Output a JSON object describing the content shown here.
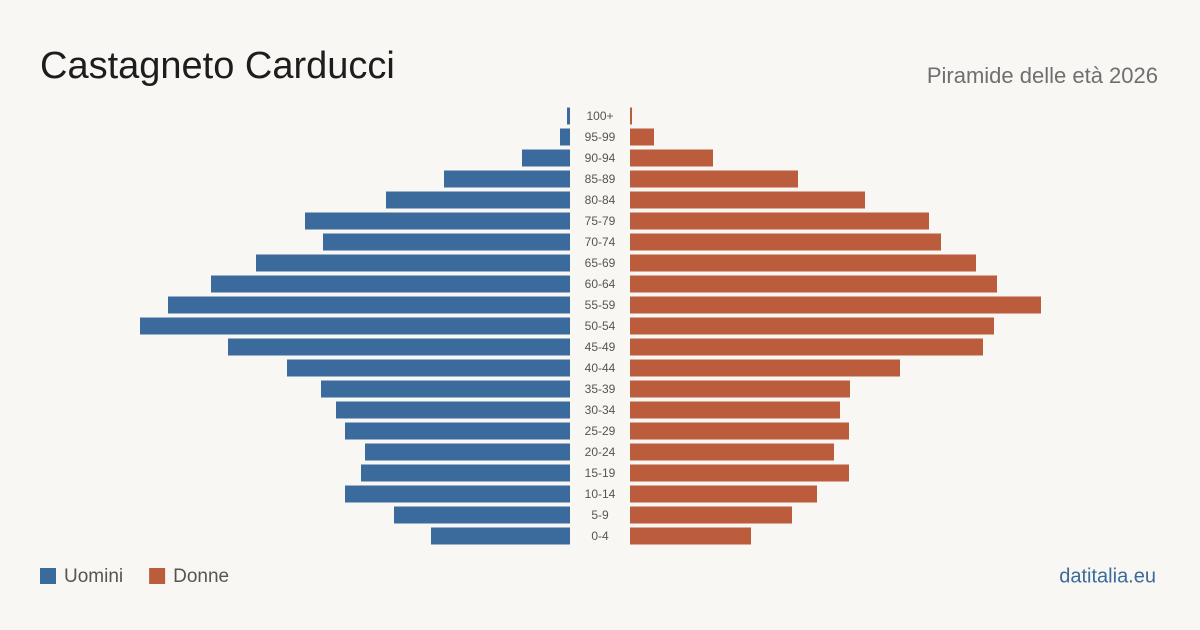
{
  "chart_data": {
    "type": "pyramid",
    "title": "Castagneto Carducci",
    "subtitle": "Piramide delle età 2026",
    "source": "datitalia.eu",
    "categories": [
      "100+",
      "95-99",
      "90-94",
      "85-89",
      "80-84",
      "75-79",
      "70-74",
      "65-69",
      "60-64",
      "55-59",
      "50-54",
      "45-49",
      "40-44",
      "35-39",
      "30-34",
      "25-29",
      "20-24",
      "15-19",
      "10-14",
      "5-9",
      "0-4"
    ],
    "xlim": [
      0,
      430
    ],
    "series": [
      {
        "name": "Uomini",
        "color": "#3b6b9c",
        "values": [
          3,
          10,
          48,
          126,
          184,
          265,
          247,
          314,
          359,
          402,
          430,
          342,
          283,
          249,
          234,
          225,
          205,
          209,
          225,
          176,
          139
        ]
      },
      {
        "name": "Donne",
        "color": "#bb5d3d",
        "values": [
          2,
          24,
          83,
          168,
          235,
          299,
          311,
          346,
          367,
          411,
          364,
          353,
          270,
          220,
          210,
          219,
          204,
          219,
          187,
          162,
          121
        ]
      }
    ]
  }
}
